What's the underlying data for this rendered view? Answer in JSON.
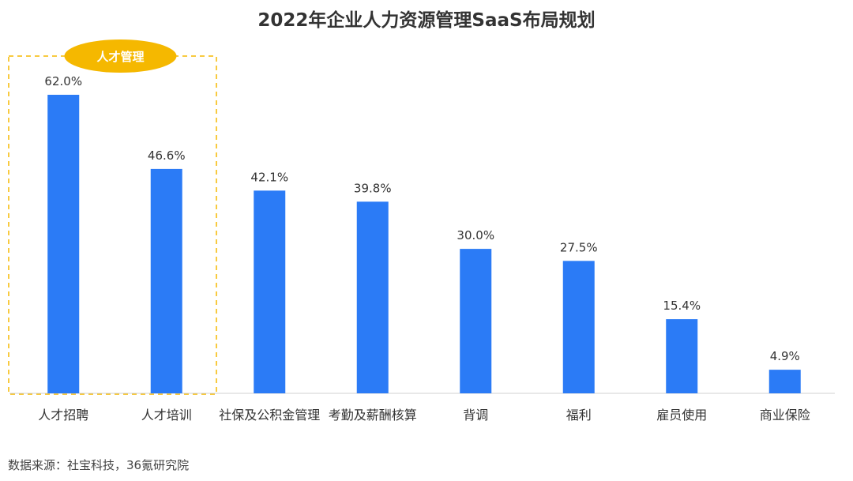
{
  "chart_data": {
    "type": "bar",
    "title": "2022年企业人力资源管理SaaS布局规划",
    "categories": [
      "人才招聘",
      "人才培训",
      "社保及公积金管理",
      "考勤及薪酬核算",
      "背调",
      "福利",
      "雇员使用",
      "商业保险"
    ],
    "values": [
      62.0,
      46.6,
      42.1,
      39.8,
      30.0,
      27.5,
      15.4,
      4.9
    ],
    "value_labels": [
      "62.0%",
      "46.6%",
      "42.1%",
      "39.8%",
      "30.0%",
      "27.5%",
      "15.4%",
      "4.9%"
    ],
    "unit": "%",
    "ylim": [
      0,
      70
    ],
    "xlabel": "",
    "ylabel": "",
    "grid": false,
    "legend": "none",
    "highlight_group": {
      "label": "人才管理",
      "categories": [
        "人才招聘",
        "人才培训"
      ]
    },
    "colors": {
      "bar": "#2B7BF6",
      "highlight": "#F5B800",
      "axis": "#d0d0d0"
    }
  },
  "source_note": "数据来源：社宝科技，36氪研究院"
}
